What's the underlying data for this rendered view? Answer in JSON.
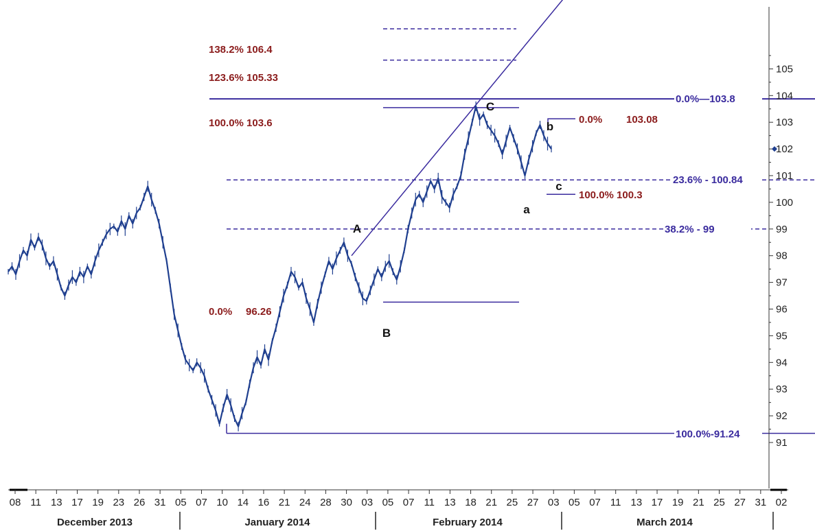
{
  "chart_data": {
    "type": "line",
    "title": "",
    "xlabel": "",
    "ylabel": "",
    "ylim": [
      90,
      108
    ],
    "y_ticks": [
      "91",
      "92",
      "93",
      "94",
      "95",
      "96",
      "97",
      "98",
      "99",
      "100",
      "101",
      "102",
      "103",
      "104",
      "105"
    ],
    "x_day_ticks": [
      "08",
      "11",
      "13",
      "17",
      "19",
      "23",
      "26",
      "31",
      "05",
      "07",
      "10",
      "14",
      "16",
      "21",
      "24",
      "28",
      "30",
      "03",
      "05",
      "07",
      "11",
      "13",
      "18",
      "21",
      "25",
      "27",
      "03",
      "05",
      "07",
      "11",
      "13",
      "17",
      "19",
      "21",
      "25",
      "27",
      "31",
      "02"
    ],
    "months": [
      "December 2013",
      "January 2014",
      "February 2014",
      "March 2014"
    ],
    "current_value_marker": 102,
    "series": [
      {
        "values": [
          97.4,
          97.6,
          97.3,
          97.8,
          98.2,
          98.0,
          98.6,
          98.3,
          98.7,
          98.4,
          97.9,
          97.6,
          97.8,
          97.3,
          96.8,
          96.5,
          96.9,
          97.2,
          97.0,
          97.4,
          97.2,
          97.6,
          97.3,
          97.8,
          98.2,
          98.5,
          98.8,
          99.0,
          99.1,
          98.9,
          99.3,
          99.0,
          99.5,
          99.2,
          99.6,
          99.8,
          100.2,
          100.6,
          100.1,
          99.7,
          99.2,
          98.5,
          97.8,
          96.8,
          95.8,
          95.2,
          94.6,
          94.1,
          93.9,
          93.7,
          94.0,
          93.8,
          93.5,
          93.0,
          92.6,
          92.2,
          91.7,
          92.3,
          92.8,
          92.4,
          91.9,
          91.6,
          92.1,
          92.5,
          93.2,
          93.8,
          94.2,
          93.9,
          94.5,
          94.1,
          94.8,
          95.3,
          95.9,
          96.5,
          96.9,
          97.4,
          97.2,
          96.8,
          97.0,
          96.4,
          96.0,
          95.5,
          96.2,
          96.8,
          97.3,
          97.8,
          97.5,
          97.9,
          98.2,
          98.5,
          98.0,
          97.7,
          97.2,
          96.8,
          96.4,
          96.3,
          96.7,
          97.1,
          97.5,
          97.2,
          97.6,
          97.8,
          97.4,
          97.1,
          97.6,
          98.2,
          99.0,
          99.6,
          100.1,
          100.3,
          100.0,
          100.4,
          100.8,
          100.5,
          100.9,
          100.2,
          100.0,
          99.8,
          100.3,
          100.6,
          101.0,
          101.8,
          102.4,
          103.0,
          103.6,
          103.1,
          103.3,
          102.9,
          102.7,
          102.5,
          102.2,
          101.8,
          102.3,
          102.8,
          102.4,
          102.0,
          101.5,
          101.0,
          101.6,
          102.1,
          102.6,
          102.9,
          102.5,
          102.2,
          102.0
        ]
      }
    ],
    "trend_line": {
      "from": 98.0,
      "to": 108.0
    },
    "swing_lines": [
      {
        "level": 96.26
      },
      {
        "level": 103.6
      },
      {
        "level": 103.08
      },
      {
        "level": 100.3
      }
    ],
    "fib_levels_left": [
      {
        "pct": "138.2%",
        "value": "106.4",
        "level": 106.4
      },
      {
        "pct": "123.6%",
        "value": "105.33",
        "level": 105.33
      },
      {
        "pct": "100.0%",
        "value": "103.6",
        "level": 103.6
      },
      {
        "pct": "0.0%",
        "value": "96.26",
        "level": 96.26
      }
    ],
    "fib_levels_right": [
      {
        "label": "0.0%—103.8",
        "level": 103.8
      },
      {
        "label": "23.6% - 100.84",
        "level": 100.84
      },
      {
        "label": "38.2% - 99",
        "level": 99.0
      },
      {
        "label": "100.0%-91.24",
        "level": 91.24
      }
    ],
    "fib_abc": [
      {
        "pct": "0.0%",
        "value": "103.08",
        "level": 103.08
      },
      {
        "pct": "100.0%",
        "value": "100.3",
        "level": 100.3
      }
    ],
    "wave_labels": [
      {
        "text": "A",
        "level": 98.4
      },
      {
        "text": "B",
        "level": 96.0
      },
      {
        "text": "C",
        "level": 103.85
      },
      {
        "text": "a",
        "level": 100.6
      },
      {
        "text": "b",
        "level": 103.2
      },
      {
        "text": "c",
        "level": 101.0
      }
    ],
    "colors": {
      "price": "#1f3f8f",
      "fib_line": "#3a2b9e",
      "fib_red": "#8b1c1c",
      "dashed": "#3a2b9e"
    }
  }
}
